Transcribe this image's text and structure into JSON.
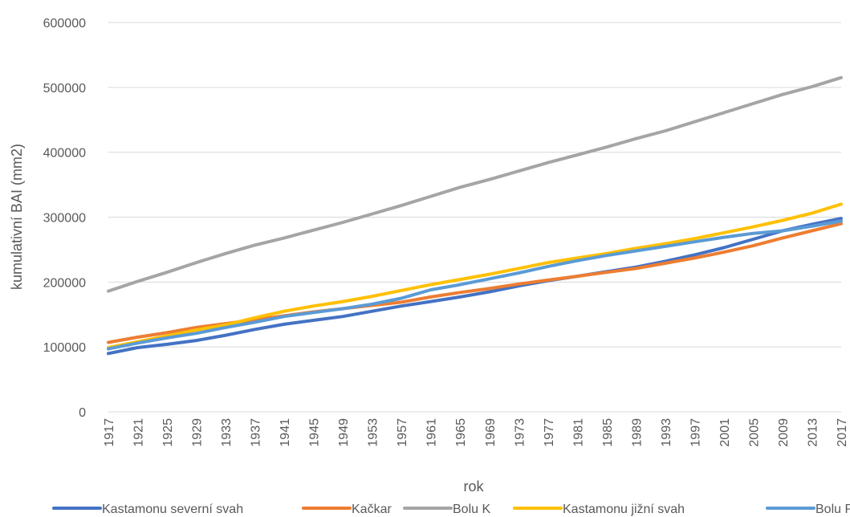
{
  "chart_data": {
    "type": "line",
    "xlabel": "rok",
    "ylabel": "kumulativní BAI (mm2)",
    "ylim": [
      0,
      600000
    ],
    "yticks": [
      0,
      100000,
      200000,
      300000,
      400000,
      500000,
      600000
    ],
    "xlim": [
      1917,
      2017
    ],
    "xticks": [
      1917,
      1921,
      1925,
      1929,
      1933,
      1937,
      1941,
      1945,
      1949,
      1953,
      1957,
      1961,
      1965,
      1969,
      1973,
      1977,
      1981,
      1985,
      1989,
      1993,
      1997,
      2001,
      2005,
      2009,
      2013,
      2017
    ],
    "grid": "horizontal",
    "legend_position": "bottom",
    "x": [
      1917,
      1921,
      1925,
      1929,
      1933,
      1937,
      1941,
      1945,
      1949,
      1953,
      1957,
      1961,
      1965,
      1969,
      1973,
      1977,
      1981,
      1985,
      1989,
      1993,
      1997,
      2001,
      2005,
      2009,
      2013,
      2017
    ],
    "series": [
      {
        "name": "Kastamonu severní svah",
        "color": "#4472C4",
        "values": [
          90000,
          99000,
          104000,
          110000,
          118000,
          127000,
          135000,
          141000,
          147000,
          155000,
          163000,
          170000,
          177000,
          185000,
          194000,
          202000,
          209000,
          216000,
          223000,
          232000,
          242000,
          253000,
          266000,
          279000,
          289000,
          298000
        ]
      },
      {
        "name": "Kačkar",
        "color": "#ED7D31",
        "values": [
          107000,
          115000,
          122000,
          130000,
          136000,
          142000,
          148000,
          154000,
          159000,
          164000,
          169000,
          177000,
          184000,
          190000,
          197000,
          203000,
          209000,
          215000,
          221000,
          229000,
          237000,
          246000,
          256000,
          268000,
          279000,
          290000
        ]
      },
      {
        "name": "Bolu K",
        "color": "#A5A5A5",
        "values": [
          186000,
          201000,
          215000,
          230000,
          244000,
          257000,
          268000,
          280000,
          292000,
          305000,
          318000,
          332000,
          346000,
          358000,
          371000,
          384000,
          396000,
          408000,
          421000,
          433000,
          447000,
          461000,
          475000,
          489000,
          501000,
          515000
        ]
      },
      {
        "name": "Kastamonu jižní svah",
        "color": "#FFC000",
        "values": [
          99000,
          108000,
          117000,
          126000,
          134000,
          145000,
          155000,
          163000,
          170000,
          178000,
          187000,
          196000,
          204000,
          212000,
          221000,
          230000,
          237000,
          244000,
          252000,
          259000,
          267000,
          276000,
          285000,
          295000,
          306000,
          320000
        ]
      },
      {
        "name": "Bolu P",
        "color": "#5B9BD5",
        "values": [
          97000,
          106000,
          114000,
          121000,
          130000,
          138000,
          147000,
          153000,
          159000,
          166000,
          175000,
          188000,
          196000,
          205000,
          214000,
          224000,
          233000,
          241000,
          248000,
          255000,
          262000,
          269000,
          275000,
          279000,
          286000,
          294000
        ]
      }
    ]
  }
}
